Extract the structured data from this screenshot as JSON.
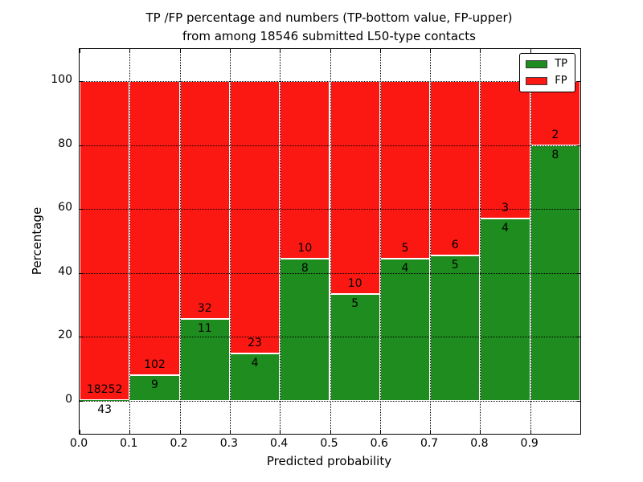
{
  "title": {
    "line1": "TP /FP percentage and numbers (TP-bottom value, FP-upper)",
    "line2": "from among 18546 submitted L50-type contacts"
  },
  "axes": {
    "xlabel": "Predicted probability",
    "ylabel": "Percentage",
    "x_tick_labels": [
      "0.0",
      "0.1",
      "0.2",
      "0.3",
      "0.4",
      "0.5",
      "0.6",
      "0.7",
      "0.8",
      "0.9"
    ],
    "y_tick_labels": [
      "0",
      "20",
      "40",
      "60",
      "80",
      "100"
    ],
    "y_tick_values": [
      0,
      20,
      40,
      60,
      80,
      100
    ],
    "xlim": [
      0.0,
      1.0
    ],
    "ylim": [
      -10.3,
      110.3
    ],
    "grid_style": "dotted"
  },
  "legend": {
    "position": "upper right",
    "items": [
      {
        "label": "TP",
        "color": "#1E8C1E"
      },
      {
        "label": "FP",
        "color": "#FB1712"
      }
    ]
  },
  "chart_data": {
    "type": "bar",
    "stacked": true,
    "title": "TP /FP percentage and numbers (TP-bottom value, FP-upper) from among 18546 submitted L50-type contacts",
    "xlabel": "Predicted probability",
    "ylabel": "Percentage",
    "total_contacts": 18546,
    "bin_start": [
      0.0,
      0.1,
      0.2,
      0.3,
      0.4,
      0.5,
      0.6,
      0.7,
      0.8,
      0.9
    ],
    "bin_width": 0.1,
    "categories": [
      "0.0-0.1",
      "0.1-0.2",
      "0.2-0.3",
      "0.3-0.4",
      "0.4-0.5",
      "0.5-0.6",
      "0.6-0.7",
      "0.7-0.8",
      "0.8-0.9",
      "0.9-1.0"
    ],
    "series": [
      {
        "name": "TP",
        "color": "#1E8C1E",
        "counts": [
          43,
          9,
          11,
          4,
          8,
          5,
          4,
          5,
          4,
          8
        ],
        "percent": [
          0.24,
          8.11,
          25.58,
          14.81,
          44.44,
          33.33,
          44.44,
          45.45,
          57.14,
          80.0
        ]
      },
      {
        "name": "FP",
        "color": "#FB1712",
        "counts": [
          18252,
          102,
          32,
          23,
          10,
          10,
          5,
          6,
          3,
          2
        ],
        "percent": [
          99.76,
          91.89,
          74.42,
          85.19,
          55.56,
          66.67,
          55.56,
          54.55,
          42.86,
          20.0
        ]
      }
    ],
    "annotation_note": "TP count drawn below green/red interface, FP count above it"
  }
}
